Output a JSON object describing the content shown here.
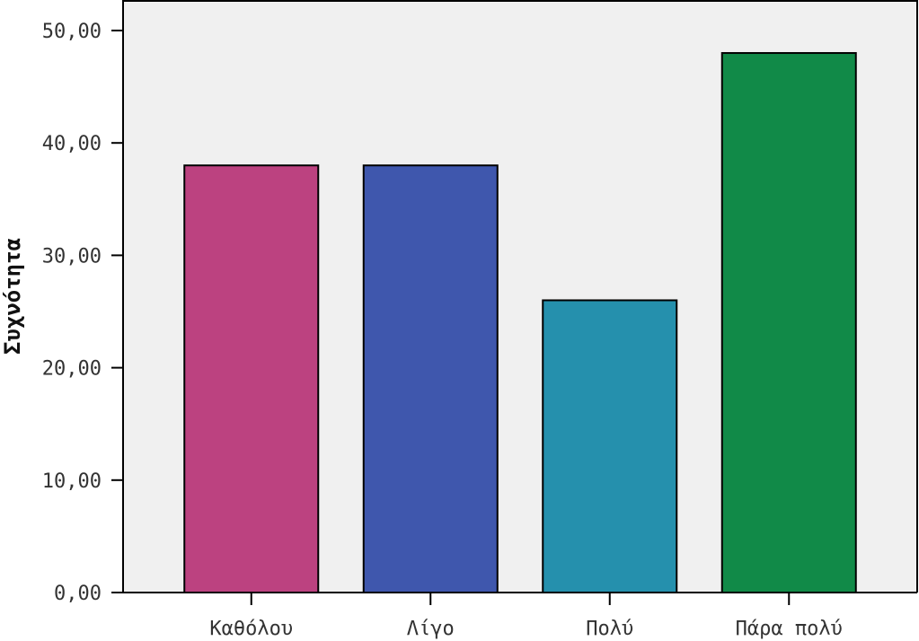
{
  "chart_data": {
    "type": "bar",
    "categories": [
      "Καθόλου",
      "Λίγο",
      "Πολύ",
      "Πάρα πολύ"
    ],
    "values": [
      38,
      38,
      26,
      48
    ],
    "colors": [
      "#bc4280",
      "#3f57ad",
      "#2590ad",
      "#118a48"
    ],
    "ylabel": "Συχνότητα",
    "xlabel": "",
    "ylim": [
      0,
      52
    ],
    "yticks": [
      0,
      10,
      20,
      30,
      40,
      50
    ],
    "ytick_labels": [
      "0,00",
      "10,00",
      "20,00",
      "30,00",
      "40,00",
      "50,00"
    ],
    "plot_background": "#f0f0f0",
    "grid": false,
    "legend": "none"
  }
}
